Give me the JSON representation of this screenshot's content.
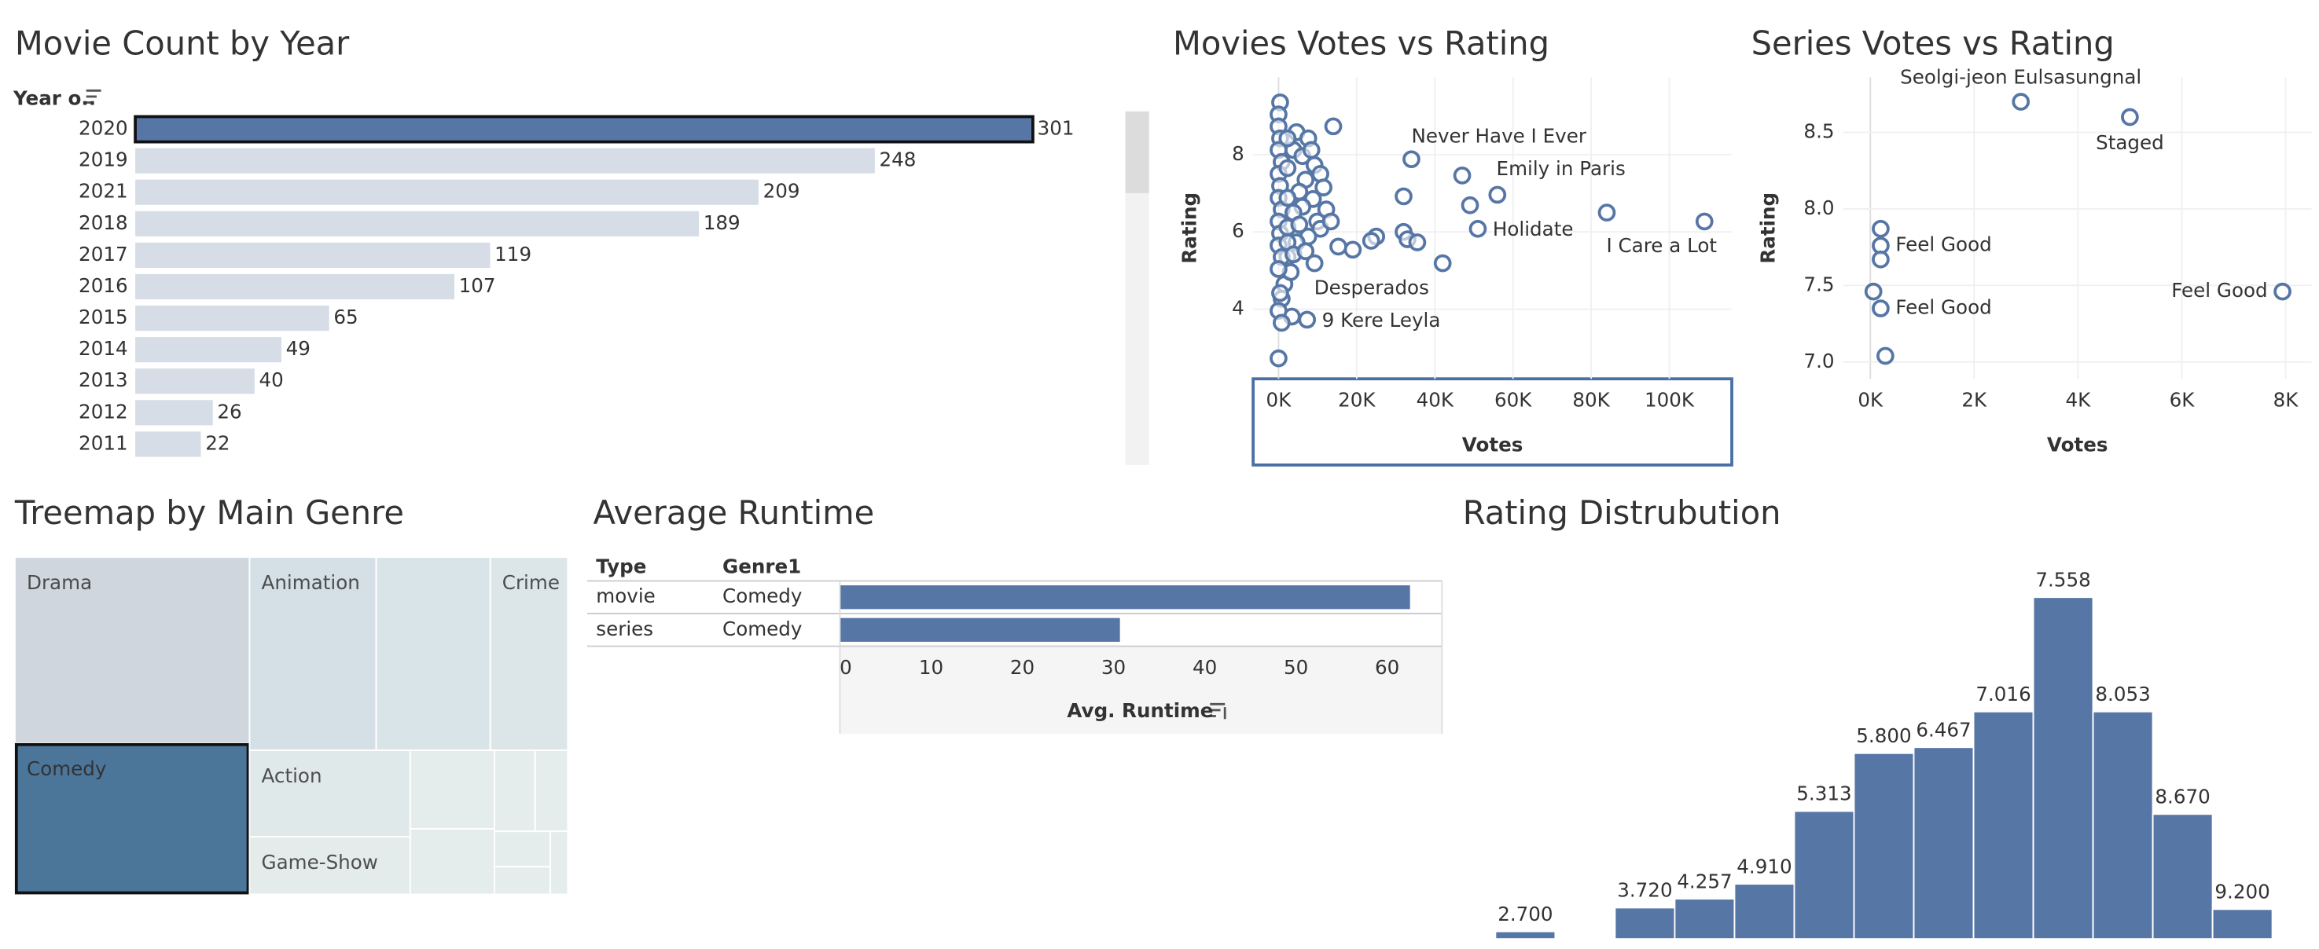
{
  "chart_data": [
    {
      "type": "hbar",
      "title": "Movie Count by Year",
      "ylabel": "Year o..",
      "categories": [
        "2020",
        "2019",
        "2021",
        "2018",
        "2017",
        "2016",
        "2015",
        "2014",
        "2013",
        "2012",
        "2011"
      ],
      "values": [
        301,
        248,
        209,
        189,
        119,
        107,
        65,
        49,
        40,
        26,
        22
      ],
      "color": "#d6dde6",
      "selected_color": "#5676a5",
      "selected_index": 0,
      "xlim": [
        0,
        331
      ]
    },
    {
      "type": "scatter",
      "title": "Movies Votes vs Rating",
      "xlabel": "Votes",
      "ylabel": "Rating",
      "color": "#5676a5",
      "x": [
        109000,
        84000,
        51000,
        49000,
        56000,
        47000,
        34000,
        14000,
        32000,
        32000,
        33000,
        35500,
        25000,
        23700,
        19000,
        15300,
        42000,
        1500,
        7300,
        3400,
        0,
        400,
        4600,
        7600,
        3800,
        6100,
        9200,
        10700,
        6900,
        5300,
        8800,
        6100,
        9900,
        10700,
        7600,
        4600,
        9200,
        3100,
        2300,
        800,
        0,
        0,
        400,
        0,
        800,
        0,
        400,
        0,
        800,
        0,
        400,
        0,
        800,
        0,
        400,
        0,
        800,
        2300,
        2300,
        2300,
        2300,
        2300,
        3800,
        3800,
        5300,
        6900,
        8400,
        11500,
        12200,
        13400
      ],
      "values": [
        6.27,
        6.5,
        6.08,
        6.69,
        6.96,
        7.46,
        7.88,
        8.73,
        6.92,
        6.0,
        5.81,
        5.73,
        5.88,
        5.77,
        5.54,
        5.62,
        5.19,
        4.65,
        3.73,
        3.81,
        2.73,
        9.35,
        8.58,
        8.42,
        8.12,
        7.96,
        7.73,
        7.5,
        7.35,
        7.04,
        6.85,
        6.65,
        6.27,
        6.08,
        5.88,
        5.73,
        5.19,
        4.96,
        5.35,
        4.27,
        9.04,
        8.73,
        8.42,
        8.12,
        7.81,
        7.5,
        7.19,
        6.88,
        6.58,
        6.27,
        5.96,
        5.65,
        5.35,
        5.04,
        4.42,
        3.96,
        3.65,
        8.42,
        7.65,
        6.88,
        6.12,
        5.73,
        6.5,
        5.42,
        6.19,
        5.5,
        8.12,
        7.15,
        6.58,
        6.27
      ],
      "labels": [
        "I Care a Lot",
        null,
        "Holidate",
        null,
        null,
        "Emily in Paris",
        "Never Have I Ever",
        null,
        null,
        null,
        null,
        null,
        null,
        null,
        null,
        null,
        null,
        "Desperados",
        "9 Kere Leyla",
        null,
        null,
        null,
        null,
        null,
        null,
        null,
        null,
        null,
        null,
        null,
        null,
        null,
        null,
        null,
        null,
        null,
        null,
        null,
        null,
        null,
        null,
        null,
        null,
        null,
        null,
        null,
        null,
        null,
        null,
        null,
        null,
        null,
        null,
        null,
        null,
        null,
        null,
        null,
        null,
        null,
        null,
        null,
        null,
        null,
        null,
        null,
        null,
        null,
        null,
        null
      ],
      "xlim": [
        -6500,
        116000
      ],
      "ylim": [
        2.2,
        10
      ],
      "xticks": [
        {
          "value": 0,
          "label": "0K"
        },
        {
          "value": 20000,
          "label": "20K"
        },
        {
          "value": 40000,
          "label": "40K"
        },
        {
          "value": 60000,
          "label": "60K"
        },
        {
          "value": 80000,
          "label": "80K"
        },
        {
          "value": 100000,
          "label": "100K"
        }
      ],
      "yticks": [
        4,
        6,
        8
      ]
    },
    {
      "type": "scatter",
      "title": "Series Votes vs Rating",
      "xlabel": "Votes",
      "ylabel": "Rating",
      "color": "#5676a5",
      "x": [
        2900,
        5000,
        200,
        200,
        200,
        60,
        200,
        290,
        7940
      ],
      "values": [
        8.7,
        8.6,
        7.87,
        7.76,
        7.67,
        7.46,
        7.35,
        7.04,
        7.46
      ],
      "labels": [
        "Seolgi-jeon Eulsasungnal",
        "Staged",
        null,
        "Feel Good",
        null,
        null,
        "Feel Good",
        null,
        "Feel Good"
      ],
      "xlim": [
        -520,
        8500
      ],
      "ylim": [
        6.89,
        8.86
      ],
      "xticks": [
        {
          "value": 0,
          "label": "0K"
        },
        {
          "value": 2000,
          "label": "2K"
        },
        {
          "value": 4000,
          "label": "4K"
        },
        {
          "value": 6000,
          "label": "6K"
        },
        {
          "value": 8000,
          "label": "8K"
        }
      ],
      "yticks": [
        {
          "value": 7,
          "label": "7.0"
        },
        7.5,
        {
          "value": 8,
          "label": "8.0"
        },
        8.5
      ]
    },
    {
      "type": "treemap",
      "title": "Treemap by Main Genre",
      "labels": [
        "Drama",
        "Comedy",
        "Animation",
        null,
        "Crime",
        "Action",
        "Game-Show",
        null,
        null,
        null,
        null,
        null,
        null,
        null
      ],
      "values": [
        198,
        161,
        111,
        100,
        68,
        63,
        42,
        30,
        25,
        15,
        12,
        9,
        7,
        5
      ],
      "colors": [
        "#cfd6de",
        "#4b7599",
        "#d4e0e6",
        "#d9e4e8",
        "#dce6e9",
        "#e0e9e9",
        "#e3ebeb",
        "#e5edec",
        "#e5edec",
        "#e5edec",
        "#e5edec",
        "#e5edec",
        "#e5edec",
        "#e5edec"
      ],
      "selected_index": 1
    },
    {
      "type": "table_bar",
      "title": "Average Runtime",
      "columns": [
        "Type",
        "Genre1"
      ],
      "rows": [
        [
          "movie",
          "Comedy"
        ],
        [
          "series",
          "Comedy"
        ]
      ],
      "values": [
        62.5,
        30.7
      ],
      "color": "#5676a5",
      "xlabel": "Avg. Runtime",
      "xlim": [
        0,
        66
      ],
      "xticks": [
        0,
        10,
        20,
        30,
        40,
        50,
        60
      ]
    },
    {
      "type": "column",
      "title": "Rating Distrubution",
      "color": "#5676a5",
      "values": [
        5,
        null,
        21,
        27,
        37,
        86,
        125,
        129,
        153,
        230,
        153,
        84,
        20
      ],
      "labels": [
        "2.700",
        null,
        "3.720",
        "4.257",
        "4.910",
        "5.313",
        "5.800",
        "6.467",
        "7.016",
        "7.558",
        "8.053",
        "8.670",
        "9.200"
      ],
      "ylim": [
        0,
        260
      ]
    }
  ]
}
